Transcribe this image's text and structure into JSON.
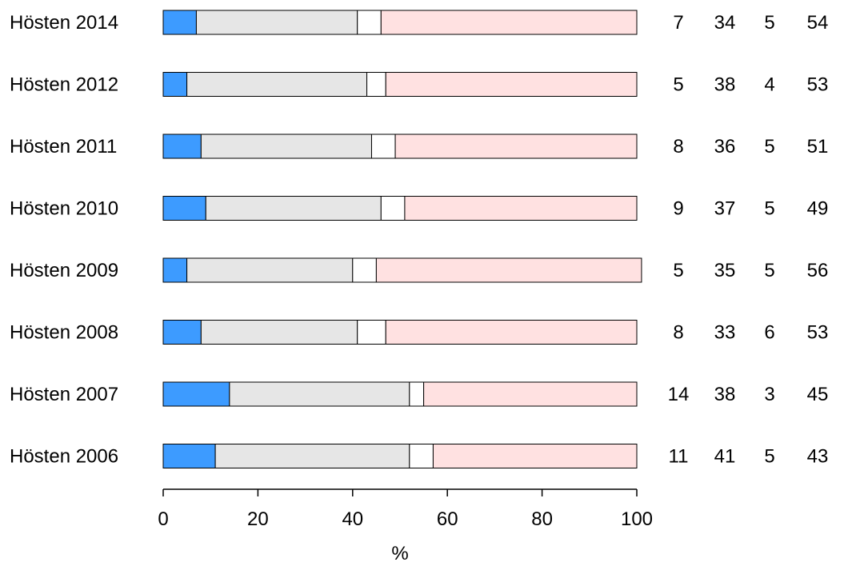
{
  "chart_data": {
    "type": "bar",
    "orientation": "horizontal",
    "stacked": true,
    "categories": [
      "Hösten 2014",
      "Hösten 2012",
      "Hösten 2011",
      "Hösten 2010",
      "Hösten 2009",
      "Hösten 2008",
      "Hösten 2007",
      "Hösten 2006"
    ],
    "series": [
      {
        "values": [
          7,
          5,
          8,
          9,
          5,
          8,
          14,
          11
        ],
        "color": "#3d9bff"
      },
      {
        "values": [
          34,
          38,
          36,
          37,
          35,
          33,
          38,
          41
        ],
        "color": "#e6e6e6"
      },
      {
        "values": [
          5,
          4,
          5,
          5,
          5,
          6,
          3,
          5
        ],
        "color": "#ffffff"
      },
      {
        "values": [
          54,
          53,
          51,
          49,
          56,
          53,
          45,
          43
        ],
        "color": "#ffe1e1"
      }
    ],
    "xlabel": "%",
    "xlim": [
      0,
      100
    ],
    "xticks": [
      0,
      20,
      40,
      60,
      80,
      100
    ],
    "grid": false,
    "value_labels": "right-of-bars"
  }
}
